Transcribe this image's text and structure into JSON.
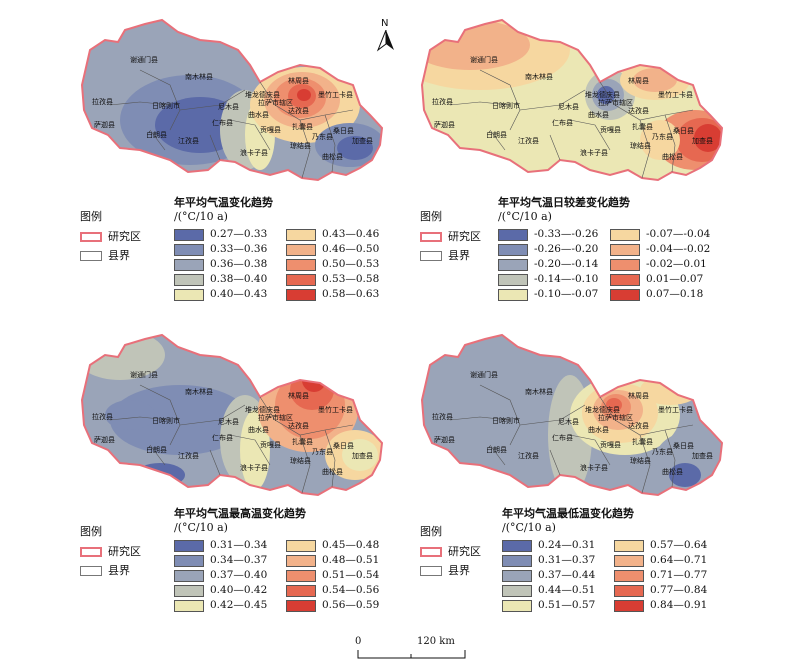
{
  "north_label": "N",
  "scale": {
    "zero": "0",
    "distance": "120 km"
  },
  "legend_common": {
    "heading": "图例",
    "study_area": "研究区",
    "county_boundary": "县界",
    "study_area_color": "#e8707a"
  },
  "counties": [
    "谢通门县",
    "南木林县",
    "拉孜县",
    "日喀则市",
    "尼木县",
    "萨迦县",
    "仁布县",
    "白朗县",
    "江孜县",
    "堆龙德庆县",
    "林周县",
    "墨竹工卡县",
    "达孜县",
    "拉萨市辖区",
    "曲水县",
    "贡嘎县",
    "扎囊县",
    "浪卡子县",
    "乃东县",
    "桑日县",
    "琼结县",
    "加查县",
    "曲松县"
  ],
  "panels": [
    {
      "title": "年平均气温变化趋势",
      "unit": "/(°C/10 a)",
      "classes": [
        {
          "label": "0.27—0.33",
          "color": "#5b6aa8"
        },
        {
          "label": "0.33—0.36",
          "color": "#7f8db4"
        },
        {
          "label": "0.36—0.38",
          "color": "#9aa4b8"
        },
        {
          "label": "0.38—0.40",
          "color": "#c0c4b8"
        },
        {
          "label": "0.40—0.43",
          "color": "#ebe7b4"
        },
        {
          "label": "0.43—0.46",
          "color": "#f6d7a0"
        },
        {
          "label": "0.46—0.50",
          "color": "#f2b28a"
        },
        {
          "label": "0.50—0.53",
          "color": "#ee8f6e"
        },
        {
          "label": "0.53—0.58",
          "color": "#e66851"
        },
        {
          "label": "0.58—0.63",
          "color": "#d83d33"
        }
      ]
    },
    {
      "title": "年平均气温日较差变化趋势",
      "unit": "/(°C/10 a)",
      "classes": [
        {
          "label": "-0.33—-0.26",
          "color": "#5b6aa8"
        },
        {
          "label": "-0.26—-0.20",
          "color": "#7f8db4"
        },
        {
          "label": "-0.20—-0.14",
          "color": "#9aa4b8"
        },
        {
          "label": "-0.14—-0.10",
          "color": "#c0c4b8"
        },
        {
          "label": "-0.10—-0.07",
          "color": "#ebe7b4"
        },
        {
          "label": "-0.07—-0.04",
          "color": "#f6d7a0"
        },
        {
          "label": "-0.04—-0.02",
          "color": "#f2b28a"
        },
        {
          "label": "-0.02—0.01",
          "color": "#ee8f6e"
        },
        {
          "label": "0.01—0.07",
          "color": "#e66851"
        },
        {
          "label": "0.07—0.18",
          "color": "#d83d33"
        }
      ]
    },
    {
      "title": "年平均气温最高温变化趋势",
      "unit": "/(°C/10 a)",
      "classes": [
        {
          "label": "0.31—0.34",
          "color": "#5b6aa8"
        },
        {
          "label": "0.34—0.37",
          "color": "#7f8db4"
        },
        {
          "label": "0.37—0.40",
          "color": "#9aa4b8"
        },
        {
          "label": "0.40—0.42",
          "color": "#c0c4b8"
        },
        {
          "label": "0.42—0.45",
          "color": "#ebe7b4"
        },
        {
          "label": "0.45—0.48",
          "color": "#f6d7a0"
        },
        {
          "label": "0.48—0.51",
          "color": "#f2b28a"
        },
        {
          "label": "0.51—0.54",
          "color": "#ee8f6e"
        },
        {
          "label": "0.54—0.56",
          "color": "#e66851"
        },
        {
          "label": "0.56—0.59",
          "color": "#d83d33"
        }
      ]
    },
    {
      "title": "年平均气温最低温变化趋势",
      "unit": "/(°C/10 a)",
      "classes": [
        {
          "label": "0.24—0.31",
          "color": "#5b6aa8"
        },
        {
          "label": "0.31—0.37",
          "color": "#7f8db4"
        },
        {
          "label": "0.37—0.44",
          "color": "#9aa4b8"
        },
        {
          "label": "0.44—0.51",
          "color": "#c0c4b8"
        },
        {
          "label": "0.51—0.57",
          "color": "#ebe7b4"
        },
        {
          "label": "0.57—0.64",
          "color": "#f6d7a0"
        },
        {
          "label": "0.64—0.71",
          "color": "#f2b28a"
        },
        {
          "label": "0.71—0.77",
          "color": "#ee8f6e"
        },
        {
          "label": "0.77—0.84",
          "color": "#e66851"
        },
        {
          "label": "0.84—0.91",
          "color": "#d83d33"
        }
      ]
    }
  ]
}
